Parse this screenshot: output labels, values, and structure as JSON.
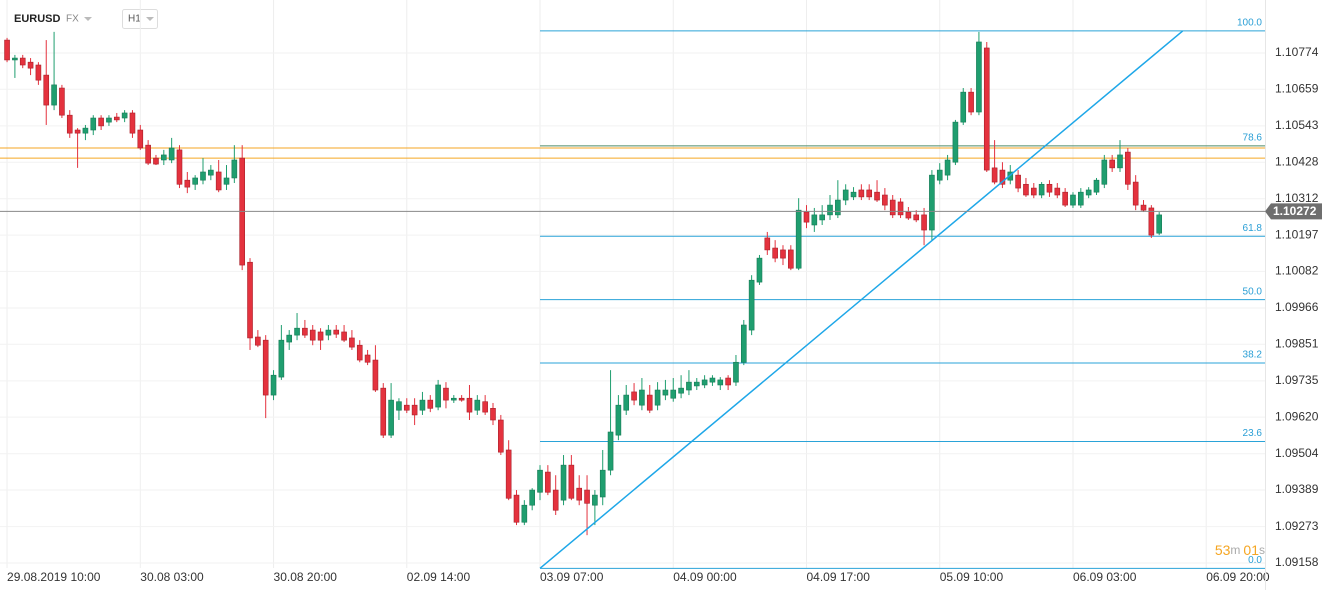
{
  "chart_data": {
    "type": "candlestick",
    "symbol": "EURUSD",
    "market": "FX",
    "interval": "H1",
    "up_color": "#1f9e6f",
    "down_color": "#e4323e",
    "grid": true,
    "xlim": [
      -0.9,
      160.5
    ],
    "ylim": [
      1.09142,
      1.10942
    ],
    "xticks": [
      {
        "value": 0,
        "label": "29.08.2019 10:00"
      },
      {
        "value": 17,
        "label": "30.08 03:00"
      },
      {
        "value": 34,
        "label": "30.08 20:00"
      },
      {
        "value": 51,
        "label": "02.09 14:00"
      },
      {
        "value": 68,
        "label": "03.09 07:00"
      },
      {
        "value": 85,
        "label": "04.09 00:00"
      },
      {
        "value": 102,
        "label": "04.09 17:00"
      },
      {
        "value": 119,
        "label": "05.09 10:00"
      },
      {
        "value": 136,
        "label": "06.09 03:00"
      },
      {
        "value": 153,
        "label": "06.09 20:00"
      }
    ],
    "yticks": [
      1.09158,
      1.09273,
      1.09389,
      1.09504,
      {
        "value": 1.0962,
        "label": "1.09620"
      },
      1.09735,
      1.09851,
      1.09966,
      1.10082,
      1.10197,
      1.10312,
      1.10428,
      1.10543,
      1.10659,
      1.10774
    ],
    "open": [
      1.10815,
      1.10752,
      1.10758,
      1.10745,
      1.10736,
      1.10704,
      1.10609,
      1.10663,
      1.10577,
      1.1053,
      1.1052,
      1.1053,
      1.10568,
      1.10555,
      1.10571,
      1.10568,
      1.10584,
      1.1053,
      1.10482,
      1.10441,
      1.10435,
      1.10435,
      1.10467,
      1.10371,
      1.10358,
      1.10371,
      1.10387,
      1.10397,
      1.10358,
      1.10378,
      1.10441,
      1.10111,
      1.09874,
      1.09864,
      1.0969,
      1.09747,
      1.09858,
      1.0988,
      1.09902,
      1.09896,
      1.0989,
      1.0988,
      1.09896,
      1.0989,
      1.09871,
      1.09848,
      1.09817,
      1.09801,
      1.09712,
      1.09563,
      1.09642,
      1.09658,
      1.09658,
      1.09642,
      1.09674,
      1.09652,
      1.09712,
      1.09674,
      1.0968,
      1.0968,
      1.09642,
      1.09669,
      1.09648,
      1.09611,
      1.09516,
      1.09373,
      1.09287,
      1.09341,
      1.09382,
      1.09446,
      1.09389,
      1.09357,
      1.09468,
      1.09395,
      1.09389,
      1.09341,
      1.09367,
      1.09452,
      1.09563,
      1.09642,
      1.097,
      1.09658,
      1.0969,
      1.09658,
      1.0969,
      1.0968,
      1.09696,
      1.09706,
      1.09719,
      1.09722,
      1.09731,
      1.09722,
      1.09744,
      1.09731,
      1.09794,
      1.09896,
      1.10048,
      1.10188,
      1.10156,
      1.1015,
      1.1015,
      1.10092,
      1.1027,
      1.10229,
      1.10245,
      1.10261,
      1.10261,
      1.10308,
      1.10318,
      1.1034,
      1.1034,
      1.10333,
      1.10324,
      1.10308,
      1.10302,
      1.1027,
      1.10261,
      1.10261,
      1.10213,
      1.10371,
      1.10387,
      1.10428,
      1.10555,
      1.1065,
      1.10587,
      1.1079,
      1.1041,
      1.10403,
      1.10371,
      1.10387,
      1.10358,
      1.10346,
      1.10324,
      1.10358,
      1.10346,
      1.10333,
      1.10292,
      1.10292,
      1.10324,
      1.10333,
      1.10358,
      1.10435,
      1.1041,
      1.1046,
      1.10365,
      1.10292,
      1.10283,
      1.10203
    ],
    "high": [
      1.10822,
      1.10768,
      1.10768,
      1.10758,
      1.10745,
      1.10815,
      1.10841,
      1.10673,
      1.10593,
      1.10536,
      1.10546,
      1.10577,
      1.10577,
      1.10577,
      1.10584,
      1.10593,
      1.10593,
      1.10546,
      1.10498,
      1.10451,
      1.10467,
      1.10505,
      1.10482,
      1.10397,
      1.10387,
      1.10441,
      1.10419,
      1.10435,
      1.10419,
      1.10482,
      1.10482,
      1.10124,
      1.09896,
      1.0988,
      1.09769,
      1.09912,
      1.09896,
      1.0995,
      1.09928,
      1.09912,
      1.09902,
      1.09912,
      1.09912,
      1.09912,
      1.09896,
      1.09864,
      1.09833,
      1.09848,
      1.09728,
      1.09728,
      1.0968,
      1.0968,
      1.0968,
      1.097,
      1.0969,
      1.09738,
      1.09731,
      1.0969,
      1.0969,
      1.09722,
      1.0969,
      1.0969,
      1.09665,
      1.09627,
      1.09547,
      1.09389,
      1.09357,
      1.09395,
      1.09468,
      1.09468,
      1.09436,
      1.095,
      1.095,
      1.09436,
      1.09436,
      1.09389,
      1.09516,
      1.09769,
      1.0969,
      1.09722,
      1.09728,
      1.09744,
      1.09722,
      1.09731,
      1.09738,
      1.09744,
      1.09753,
      1.09769,
      1.09744,
      1.09753,
      1.09753,
      1.09747,
      1.09753,
      1.09817,
      1.09928,
      1.1007,
      1.10134,
      1.10207,
      1.10181,
      1.10165,
      1.10165,
      1.10314,
      1.10292,
      1.10283,
      1.10292,
      1.10324,
      1.10371,
      1.10358,
      1.10349,
      1.10358,
      1.10358,
      1.10371,
      1.10346,
      1.10324,
      1.10314,
      1.10286,
      1.10276,
      1.10283,
      1.10403,
      1.10425,
      1.10451,
      1.10562,
      1.10663,
      1.10663,
      1.10841,
      1.10809,
      1.10498,
      1.10428,
      1.10419,
      1.10403,
      1.10378,
      1.10362,
      1.10365,
      1.10371,
      1.10362,
      1.10346,
      1.10333,
      1.10346,
      1.10349,
      1.10378,
      1.10451,
      1.10451,
      1.10498,
      1.10473,
      1.10387,
      1.10308,
      1.10292,
      1.1027
    ],
    "low": [
      1.10745,
      1.10695,
      1.10726,
      1.10704,
      1.10673,
      1.10546,
      1.10593,
      1.10568,
      1.10505,
      1.1041,
      1.10498,
      1.10514,
      1.1053,
      1.10543,
      1.10555,
      1.10555,
      1.10505,
      1.10467,
      1.10419,
      1.10419,
      1.10419,
      1.10425,
      1.10346,
      1.1033,
      1.1034,
      1.10358,
      1.10371,
      1.10333,
      1.1034,
      1.10362,
      1.10086,
      1.09833,
      1.09842,
      1.09617,
      1.09674,
      1.09738,
      1.09833,
      1.09864,
      1.09871,
      1.09848,
      1.09833,
      1.09864,
      1.09871,
      1.09858,
      1.09833,
      1.09794,
      1.09785,
      1.097,
      1.09554,
      1.09554,
      1.09611,
      1.09633,
      1.09595,
      1.09627,
      1.09636,
      1.09642,
      1.09648,
      1.09665,
      1.09669,
      1.09611,
      1.09627,
      1.09627,
      1.09595,
      1.095,
      1.09357,
      1.09278,
      1.09278,
      1.09325,
      1.09357,
      1.09373,
      1.0931,
      1.09341,
      1.09357,
      1.09341,
      1.09246,
      1.09278,
      1.09341,
      1.09436,
      1.09547,
      1.09627,
      1.09658,
      1.09642,
      1.09633,
      1.09642,
      1.09674,
      1.09669,
      1.0968,
      1.0969,
      1.09706,
      1.09712,
      1.09719,
      1.09706,
      1.09706,
      1.09719,
      1.09785,
      1.0988,
      1.10039,
      1.10134,
      1.10111,
      1.10102,
      1.10086,
      1.10086,
      1.10219,
      1.10207,
      1.10229,
      1.10245,
      1.10251,
      1.10292,
      1.10308,
      1.10308,
      1.10308,
      1.10302,
      1.10276,
      1.10251,
      1.10251,
      1.10245,
      1.10238,
      1.10165,
      1.10181,
      1.10358,
      1.10371,
      1.10419,
      1.10546,
      1.10577,
      1.10577,
      1.10397,
      1.10358,
      1.10346,
      1.10358,
      1.10333,
      1.10318,
      1.10314,
      1.10314,
      1.10318,
      1.10314,
      1.10286,
      1.10283,
      1.10283,
      1.10314,
      1.10324,
      1.10346,
      1.10397,
      1.10397,
      1.1034,
      1.10276,
      1.1027,
      1.10188,
      1.10197
    ],
    "close": [
      1.10752,
      1.10758,
      1.10736,
      1.10726,
      1.10688,
      1.10609,
      1.10673,
      1.10577,
      1.1052,
      1.1052,
      1.10536,
      1.10568,
      1.10543,
      1.10568,
      1.10562,
      1.10584,
      1.1052,
      1.10473,
      1.10425,
      1.10422,
      1.10451,
      1.10473,
      1.10358,
      1.10349,
      1.10378,
      1.10397,
      1.10403,
      1.1034,
      1.10378,
      1.10435,
      1.10102,
      1.09871,
      1.09848,
      1.0969,
      1.09753,
      1.09864,
      1.0988,
      1.09902,
      1.0988,
      1.09864,
      1.09864,
      1.09896,
      1.09883,
      1.09864,
      1.09842,
      1.09801,
      1.09794,
      1.09706,
      1.09563,
      1.09674,
      1.09669,
      1.09642,
      1.09627,
      1.09674,
      1.09648,
      1.09722,
      1.09674,
      1.0968,
      1.09674,
      1.09636,
      1.09674,
      1.09636,
      1.09611,
      1.09509,
      1.09363,
      1.09287,
      1.09341,
      1.09389,
      1.09452,
      1.09382,
      1.09325,
      1.09468,
      1.09363,
      1.09357,
      1.09347,
      1.09373,
      1.09452,
      1.09573,
      1.09658,
      1.0969,
      1.09674,
      1.09706,
      1.09642,
      1.09706,
      1.09706,
      1.09706,
      1.09712,
      1.09731,
      1.09731,
      1.09738,
      1.09744,
      1.09738,
      1.09722,
      1.09794,
      1.09912,
      1.10054,
      1.10124,
      1.1015,
      1.10124,
      1.10124,
      1.10092,
      1.10276,
      1.10238,
      1.10261,
      1.10261,
      1.10292,
      1.10308,
      1.1034,
      1.10333,
      1.10318,
      1.10318,
      1.10308,
      1.10292,
      1.10261,
      1.10261,
      1.10251,
      1.10245,
      1.10213,
      1.10387,
      1.10403,
      1.10435,
      1.10555,
      1.1065,
      1.10587,
      1.10809,
      1.10403,
      1.10365,
      1.10358,
      1.10397,
      1.10346,
      1.10324,
      1.10324,
      1.10358,
      1.10333,
      1.10324,
      1.10292,
      1.10324,
      1.10333,
      1.1034,
      1.10371,
      1.10435,
      1.1041,
      1.10451,
      1.10358,
      1.10292,
      1.10276,
      1.10197,
      1.10261
    ],
    "last_price": 1.10272,
    "horizontal_lines": [
      {
        "value": 1.10473,
        "color": "#f5a623"
      },
      {
        "value": 1.10441,
        "color": "#f5a623"
      }
    ],
    "trendline": {
      "x": [
        68,
        150
      ],
      "y": [
        1.09141,
        1.10844
      ],
      "color": "#1ea7e8"
    },
    "fib": {
      "x_start": 68,
      "from": 1.09141,
      "to": 1.10844,
      "levels": [
        {
          "value": 0,
          "label": "0.0"
        },
        23.6,
        38.2,
        {
          "value": 50,
          "label": "50.0"
        },
        61.8,
        78.6,
        {
          "value": 100,
          "label": "100.0"
        }
      ],
      "line_colors": [
        "#2aa3d8",
        "#2aa3d8",
        "#2aa3d8",
        "#2aa3d8",
        "#2aa3d8",
        "#4d8a66",
        "#2aa3d8"
      ]
    },
    "countdown": {
      "minutes": "53",
      "minutes_unit": "m",
      "seconds": "01",
      "seconds_unit": "s"
    }
  }
}
